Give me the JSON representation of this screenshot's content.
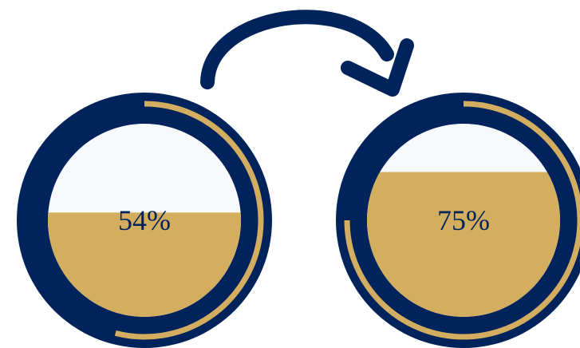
{
  "colors": {
    "navy": "#00235B",
    "gold": "#D4AE60",
    "empty": "#F7F9FC",
    "background": "#FFFFFF"
  },
  "gauges": [
    {
      "label": "54%",
      "fill_fraction": 0.54,
      "ring_fraction": 0.54
    },
    {
      "label": "75%",
      "fill_fraction": 0.75,
      "ring_fraction": 0.75
    }
  ],
  "connector": {
    "icon": "curved-arrow-right-icon"
  }
}
